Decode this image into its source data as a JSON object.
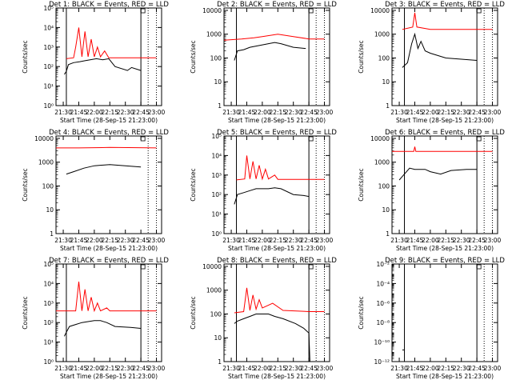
{
  "colors": {
    "events": "#000000",
    "lld": "#ff0000",
    "axis": "#000000"
  },
  "common": {
    "xlabel": "Start Time (28-Sep-15 21:23:00)",
    "ylabel": "Counts/sec",
    "xticks": [
      "21:30",
      "21:45",
      "22:00",
      "22:15",
      "22:30",
      "22:45",
      "23:00"
    ]
  },
  "chart_data": [
    {
      "type": "line",
      "title": "Det 1: BLACK = Events, RED = LLD",
      "scale": "log",
      "ylim_exp": [
        0,
        5
      ],
      "tick_exp": [
        0,
        1,
        2,
        3,
        4,
        5
      ],
      "tick_style": "sci",
      "xlim": [
        "21:23",
        "23:05"
      ],
      "vlines_solid": [
        "21:33",
        "22:45"
      ],
      "vlines_dotted": [
        "22:52",
        "23:00"
      ],
      "series": [
        {
          "name": "Events",
          "color": "#000000",
          "points": [
            [
              "21:31",
              1.6
            ],
            [
              "21:33",
              1.75
            ],
            [
              "21:35",
              2.1
            ],
            [
              "21:40",
              2.2
            ],
            [
              "21:46",
              2.25
            ],
            [
              "21:51",
              2.3
            ],
            [
              "21:56",
              2.35
            ],
            [
              "22:02",
              2.4
            ],
            [
              "22:08",
              2.35
            ],
            [
              "22:14",
              2.4
            ],
            [
              "22:20",
              2.0
            ],
            [
              "22:32",
              1.8
            ],
            [
              "22:36",
              1.95
            ],
            [
              "22:45",
              1.8
            ]
          ]
        },
        {
          "name": "LLD",
          "color": "#ff0000",
          "points": [
            [
              "21:33",
              2.4
            ],
            [
              "21:40",
              2.45
            ],
            [
              "21:42",
              3.0
            ],
            [
              "21:45",
              4.0
            ],
            [
              "21:48",
              2.5
            ],
            [
              "21:51",
              3.8
            ],
            [
              "21:54",
              2.5
            ],
            [
              "21:57",
              3.4
            ],
            [
              "22:00",
              2.5
            ],
            [
              "22:03",
              3.0
            ],
            [
              "22:06",
              2.5
            ],
            [
              "22:10",
              2.8
            ],
            [
              "22:14",
              2.45
            ],
            [
              "23:00",
              2.45
            ]
          ]
        }
      ]
    },
    {
      "type": "line",
      "title": "Det 2: BLACK = Events, RED = LLD",
      "scale": "log",
      "ylim_exp": [
        0,
        4.1
      ],
      "tick_exp": [
        0,
        1,
        2,
        3,
        4
      ],
      "tick_style": "plain",
      "tick_labels": [
        "1",
        "10",
        "100",
        "1000",
        "10000"
      ],
      "xlim": [
        "21:23",
        "23:05"
      ],
      "vlines_solid": [
        "21:35",
        "22:45"
      ],
      "vlines_dotted": [
        "22:52",
        "23:00"
      ],
      "series": [
        {
          "name": "Events",
          "color": "#000000",
          "points": [
            [
              "21:33",
              1.9
            ],
            [
              "21:36",
              2.3
            ],
            [
              "21:42",
              2.35
            ],
            [
              "21:48",
              2.45
            ],
            [
              "21:54",
              2.5
            ],
            [
              "22:00",
              2.55
            ],
            [
              "22:06",
              2.6
            ],
            [
              "22:12",
              2.65
            ],
            [
              "22:18",
              2.6
            ],
            [
              "22:30",
              2.45
            ],
            [
              "22:42",
              2.4
            ]
          ]
        },
        {
          "name": "LLD",
          "color": "#ff0000",
          "points": [
            [
              "21:23",
              2.75
            ],
            [
              "21:40",
              2.8
            ],
            [
              "21:52",
              2.85
            ],
            [
              "22:00",
              2.9
            ],
            [
              "22:15",
              3.0
            ],
            [
              "22:30",
              2.9
            ],
            [
              "22:45",
              2.8
            ],
            [
              "23:00",
              2.8
            ]
          ]
        }
      ]
    },
    {
      "type": "line",
      "title": "Det 3: BLACK = Events, RED = LLD",
      "scale": "log",
      "ylim_exp": [
        0,
        4.1
      ],
      "tick_exp": [
        0,
        1,
        2,
        3,
        4
      ],
      "tick_style": "plain",
      "tick_labels": [
        "1",
        "10",
        "100",
        "1000",
        "10000"
      ],
      "xlim": [
        "21:23",
        "23:05"
      ],
      "vlines_solid": [
        "21:35",
        "22:45"
      ],
      "vlines_dotted": [
        "22:52",
        "23:00"
      ],
      "series": [
        {
          "name": "Events",
          "color": "#000000",
          "points": [
            [
              "21:33",
              1.6
            ],
            [
              "21:38",
              1.8
            ],
            [
              "21:42",
              2.6
            ],
            [
              "21:45",
              3.0
            ],
            [
              "21:48",
              2.4
            ],
            [
              "21:51",
              2.7
            ],
            [
              "21:55",
              2.3
            ],
            [
              "22:00",
              2.2
            ],
            [
              "22:15",
              2.0
            ],
            [
              "22:30",
              1.95
            ],
            [
              "22:45",
              1.9
            ]
          ]
        },
        {
          "name": "LLD",
          "color": "#ff0000",
          "points": [
            [
              "21:33",
              3.2
            ],
            [
              "21:43",
              3.3
            ],
            [
              "21:45",
              3.9
            ],
            [
              "21:47",
              3.3
            ],
            [
              "22:00",
              3.2
            ],
            [
              "23:00",
              3.2
            ]
          ]
        }
      ]
    },
    {
      "type": "line",
      "title": "Det 4: BLACK = Events, RED = LLD",
      "scale": "log",
      "ylim_exp": [
        0,
        4.1
      ],
      "tick_exp": [
        0,
        1,
        2,
        3,
        4
      ],
      "tick_style": "plain",
      "tick_labels": [
        "1",
        "10",
        "100",
        "1000",
        "10000"
      ],
      "xlim": [
        "21:23",
        "23:05"
      ],
      "vlines_solid": [],
      "vlines_dotted": [
        "22:52",
        "23:00"
      ],
      "series": [
        {
          "name": "Events",
          "color": "#000000",
          "points": [
            [
              "21:33",
              2.5
            ],
            [
              "21:40",
              2.6
            ],
            [
              "21:50",
              2.75
            ],
            [
              "22:00",
              2.85
            ],
            [
              "22:15",
              2.9
            ],
            [
              "22:30",
              2.85
            ],
            [
              "22:45",
              2.8
            ]
          ]
        },
        {
          "name": "LLD",
          "color": "#ff0000",
          "points": [
            [
              "21:23",
              3.6
            ],
            [
              "21:45",
              3.6
            ],
            [
              "22:15",
              3.62
            ],
            [
              "23:00",
              3.6
            ]
          ]
        }
      ]
    },
    {
      "type": "line",
      "title": "Det 5: BLACK = Events, RED = LLD",
      "scale": "log",
      "ylim_exp": [
        0,
        5
      ],
      "tick_exp": [
        0,
        1,
        2,
        3,
        4,
        5
      ],
      "tick_style": "sci",
      "xlim": [
        "21:23",
        "23:05"
      ],
      "vlines_solid": [
        "21:35",
        "22:45"
      ],
      "vlines_dotted": [
        "22:52",
        "23:00"
      ],
      "series": [
        {
          "name": "Events",
          "color": "#000000",
          "points": [
            [
              "21:33",
              1.5
            ],
            [
              "21:36",
              2.0
            ],
            [
              "21:42",
              2.1
            ],
            [
              "21:48",
              2.2
            ],
            [
              "21:54",
              2.3
            ],
            [
              "22:00",
              2.3
            ],
            [
              "22:06",
              2.3
            ],
            [
              "22:12",
              2.35
            ],
            [
              "22:18",
              2.3
            ],
            [
              "22:30",
              2.0
            ],
            [
              "22:40",
              1.95
            ],
            [
              "22:45",
              1.9
            ]
          ]
        },
        {
          "name": "LLD",
          "color": "#ff0000",
          "points": [
            [
              "21:35",
              2.75
            ],
            [
              "21:43",
              2.8
            ],
            [
              "21:45",
              4.0
            ],
            [
              "21:48",
              2.8
            ],
            [
              "21:51",
              3.7
            ],
            [
              "21:54",
              2.8
            ],
            [
              "21:57",
              3.5
            ],
            [
              "22:00",
              2.8
            ],
            [
              "22:03",
              3.3
            ],
            [
              "22:06",
              2.8
            ],
            [
              "22:12",
              3.0
            ],
            [
              "22:15",
              2.78
            ],
            [
              "23:00",
              2.78
            ]
          ]
        }
      ]
    },
    {
      "type": "line",
      "title": "Det 6: BLACK = Events, RED = LLD",
      "scale": "log",
      "ylim_exp": [
        0,
        4.1
      ],
      "tick_exp": [
        0,
        1,
        2,
        3,
        4
      ],
      "tick_style": "plain",
      "tick_labels": [
        "1",
        "10",
        "100",
        "1000",
        "10000"
      ],
      "xlim": [
        "21:23",
        "23:05"
      ],
      "vlines_solid": [
        "21:35",
        "22:45"
      ],
      "vlines_dotted": [
        "22:52",
        "23:00"
      ],
      "series": [
        {
          "name": "Events",
          "color": "#000000",
          "points": [
            [
              "21:30",
              2.25
            ],
            [
              "21:33",
              2.4
            ],
            [
              "21:40",
              2.75
            ],
            [
              "21:45",
              2.7
            ],
            [
              "21:55",
              2.7
            ],
            [
              "22:00",
              2.6
            ],
            [
              "22:10",
              2.5
            ],
            [
              "22:20",
              2.65
            ],
            [
              "22:35",
              2.7
            ],
            [
              "22:45",
              2.7
            ]
          ]
        },
        {
          "name": "LLD",
          "color": "#ff0000",
          "points": [
            [
              "21:23",
              3.45
            ],
            [
              "21:44",
              3.45
            ],
            [
              "21:45",
              3.65
            ],
            [
              "21:46",
              3.45
            ],
            [
              "23:00",
              3.45
            ]
          ]
        }
      ]
    },
    {
      "type": "line",
      "title": "Det 7: BLACK = Events, RED = LLD",
      "scale": "log",
      "ylim_exp": [
        0,
        5
      ],
      "tick_exp": [
        0,
        1,
        2,
        3,
        4,
        5
      ],
      "tick_style": "sci",
      "xlim": [
        "21:23",
        "23:05"
      ],
      "vlines_solid": [
        "21:33",
        "22:45"
      ],
      "vlines_dotted": [
        "22:52",
        "23:00"
      ],
      "series": [
        {
          "name": "Events",
          "color": "#000000",
          "points": [
            [
              "21:31",
              1.3
            ],
            [
              "21:33",
              1.5
            ],
            [
              "21:36",
              1.8
            ],
            [
              "21:42",
              1.9
            ],
            [
              "21:48",
              2.0
            ],
            [
              "21:54",
              2.05
            ],
            [
              "22:00",
              2.1
            ],
            [
              "22:06",
              2.1
            ],
            [
              "22:12",
              2.0
            ],
            [
              "22:20",
              1.8
            ],
            [
              "22:35",
              1.75
            ],
            [
              "22:45",
              1.7
            ]
          ]
        },
        {
          "name": "LLD",
          "color": "#ff0000",
          "points": [
            [
              "21:23",
              2.6
            ],
            [
              "21:42",
              2.6
            ],
            [
              "21:45",
              4.1
            ],
            [
              "21:48",
              2.6
            ],
            [
              "21:51",
              3.7
            ],
            [
              "21:54",
              2.6
            ],
            [
              "21:57",
              3.3
            ],
            [
              "22:00",
              2.6
            ],
            [
              "22:03",
              3.0
            ],
            [
              "22:06",
              2.6
            ],
            [
              "22:12",
              2.75
            ],
            [
              "22:15",
              2.6
            ],
            [
              "23:00",
              2.6
            ]
          ]
        }
      ]
    },
    {
      "type": "line",
      "title": "Det 8: BLACK = Events, RED = LLD",
      "scale": "log",
      "ylim_exp": [
        0,
        4.1
      ],
      "tick_exp": [
        0,
        1,
        2,
        3,
        4
      ],
      "tick_style": "plain",
      "tick_labels": [
        "1",
        "10",
        "100",
        "1000",
        "10000"
      ],
      "xlim": [
        "21:23",
        "23:05"
      ],
      "vlines_solid": [
        "21:35",
        "22:45"
      ],
      "vlines_dotted": [
        "22:52",
        "23:00"
      ],
      "series": [
        {
          "name": "Events",
          "color": "#000000",
          "points": [
            [
              "21:33",
              1.6
            ],
            [
              "21:36",
              1.7
            ],
            [
              "21:42",
              1.8
            ],
            [
              "21:48",
              1.9
            ],
            [
              "21:54",
              2.0
            ],
            [
              "22:00",
              2.0
            ],
            [
              "22:06",
              2.0
            ],
            [
              "22:12",
              1.9
            ],
            [
              "22:20",
              1.8
            ],
            [
              "22:32",
              1.6
            ],
            [
              "22:40",
              1.4
            ],
            [
              "22:45",
              1.2
            ],
            [
              "22:46",
              0.0
            ]
          ]
        },
        {
          "name": "LLD",
          "color": "#ff0000",
          "points": [
            [
              "21:33",
              2.05
            ],
            [
              "21:42",
              2.1
            ],
            [
              "21:45",
              3.1
            ],
            [
              "21:48",
              2.15
            ],
            [
              "21:51",
              2.8
            ],
            [
              "21:54",
              2.2
            ],
            [
              "21:57",
              2.6
            ],
            [
              "22:00",
              2.25
            ],
            [
              "22:10",
              2.45
            ],
            [
              "22:20",
              2.15
            ],
            [
              "22:45",
              2.1
            ],
            [
              "23:00",
              2.1
            ]
          ]
        }
      ]
    },
    {
      "type": "line",
      "title": "Det 9: BLACK = Events, RED = LLD",
      "scale": "log",
      "ylim_exp": [
        -12,
        -2
      ],
      "tick_exp": [
        -12,
        -10,
        -8,
        -6,
        -4,
        -2
      ],
      "tick_style": "sci",
      "xlim": [
        "21:23",
        "23:05"
      ],
      "vlines_solid": [
        "21:35",
        "22:45"
      ],
      "vlines_dotted": [
        "22:52",
        "23:00"
      ],
      "series": [
        {
          "name": "Events",
          "color": "#000000",
          "points": [
            [
              "21:33",
              -10.8
            ],
            [
              "21:35",
              -10.8
            ]
          ]
        },
        {
          "name": "LLD",
          "color": "#ff0000",
          "points": []
        }
      ]
    }
  ]
}
